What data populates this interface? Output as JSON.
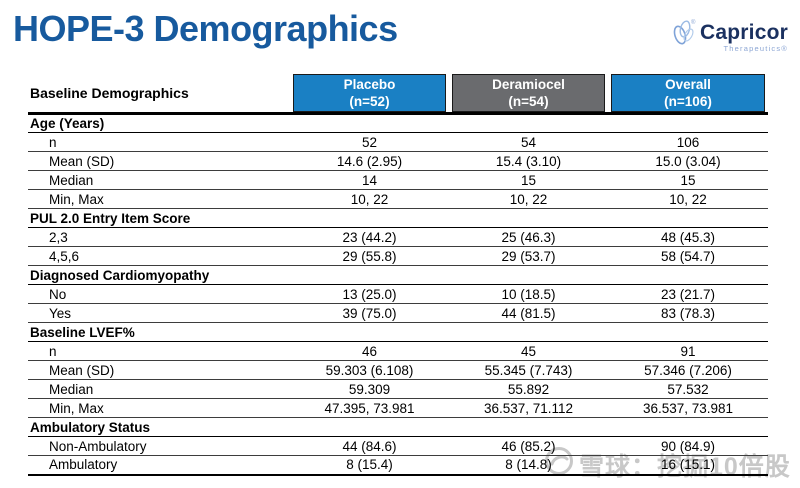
{
  "page": {
    "title": "HOPE-3 Demographics"
  },
  "logo": {
    "name": "Capricor",
    "subtitle": "Therapeutics®"
  },
  "table": {
    "label_header": "Baseline Demographics",
    "columns": [
      {
        "label": "Placebo",
        "sub": "(n=52)",
        "color": "#1A80C4"
      },
      {
        "label": "Deramiocel",
        "sub": "(n=54)",
        "color": "#6A6B6E"
      },
      {
        "label": "Overall",
        "sub": "(n=106)",
        "color": "#1A80C4"
      }
    ],
    "sections": [
      {
        "header": "Age (Years)",
        "rows": [
          {
            "label": "n",
            "values": [
              "52",
              "54",
              "106"
            ]
          },
          {
            "label": "Mean (SD)",
            "values": [
              "14.6 (2.95)",
              "15.4 (3.10)",
              "15.0 (3.04)"
            ]
          },
          {
            "label": "Median",
            "values": [
              "14",
              "15",
              "15"
            ]
          },
          {
            "label": "Min, Max",
            "values": [
              "10, 22",
              "10, 22",
              "10, 22"
            ]
          }
        ]
      },
      {
        "header": "PUL 2.0 Entry Item Score",
        "rows": [
          {
            "label": "2,3",
            "values": [
              "23 (44.2)",
              "25 (46.3)",
              "48 (45.3)"
            ]
          },
          {
            "label": "4,5,6",
            "values": [
              "29 (55.8)",
              "29 (53.7)",
              "58 (54.7)"
            ]
          }
        ]
      },
      {
        "header": "Diagnosed Cardiomyopathy",
        "rows": [
          {
            "label": "No",
            "values": [
              "13 (25.0)",
              "10 (18.5)",
              "23 (21.7)"
            ]
          },
          {
            "label": "Yes",
            "values": [
              "39 (75.0)",
              "44 (81.5)",
              "83 (78.3)"
            ]
          }
        ]
      },
      {
        "header": "Baseline LVEF%",
        "rows": [
          {
            "label": "n",
            "values": [
              "46",
              "45",
              "91"
            ]
          },
          {
            "label": "Mean (SD)",
            "values": [
              "59.303 (6.108)",
              "55.345 (7.743)",
              "57.346 (7.206)"
            ]
          },
          {
            "label": "Median",
            "values": [
              "59.309",
              "55.892",
              "57.532"
            ]
          },
          {
            "label": "Min, Max",
            "values": [
              "47.395, 73.981",
              "36.537, 71.112",
              "36.537, 73.981"
            ]
          }
        ]
      },
      {
        "header": "Ambulatory Status",
        "rows": [
          {
            "label": "Non-Ambulatory",
            "values": [
              "44 (84.6)",
              "46 (85.2)",
              "90 (84.9)"
            ]
          },
          {
            "label": "Ambulatory",
            "values": [
              "8 (15.4)",
              "8 (14.8)",
              "16 (15.1)"
            ]
          }
        ]
      }
    ]
  },
  "watermark": {
    "text": "雪球：挖掘10倍股"
  },
  "colors": {
    "title_blue": "#175A9E",
    "header_blue": "#1A80C4",
    "header_gray": "#6A6B6E",
    "logo_navy": "#1B3160",
    "logo_light_blue": "#8CA6D4",
    "watermark_gray": "#C8C8C8"
  }
}
